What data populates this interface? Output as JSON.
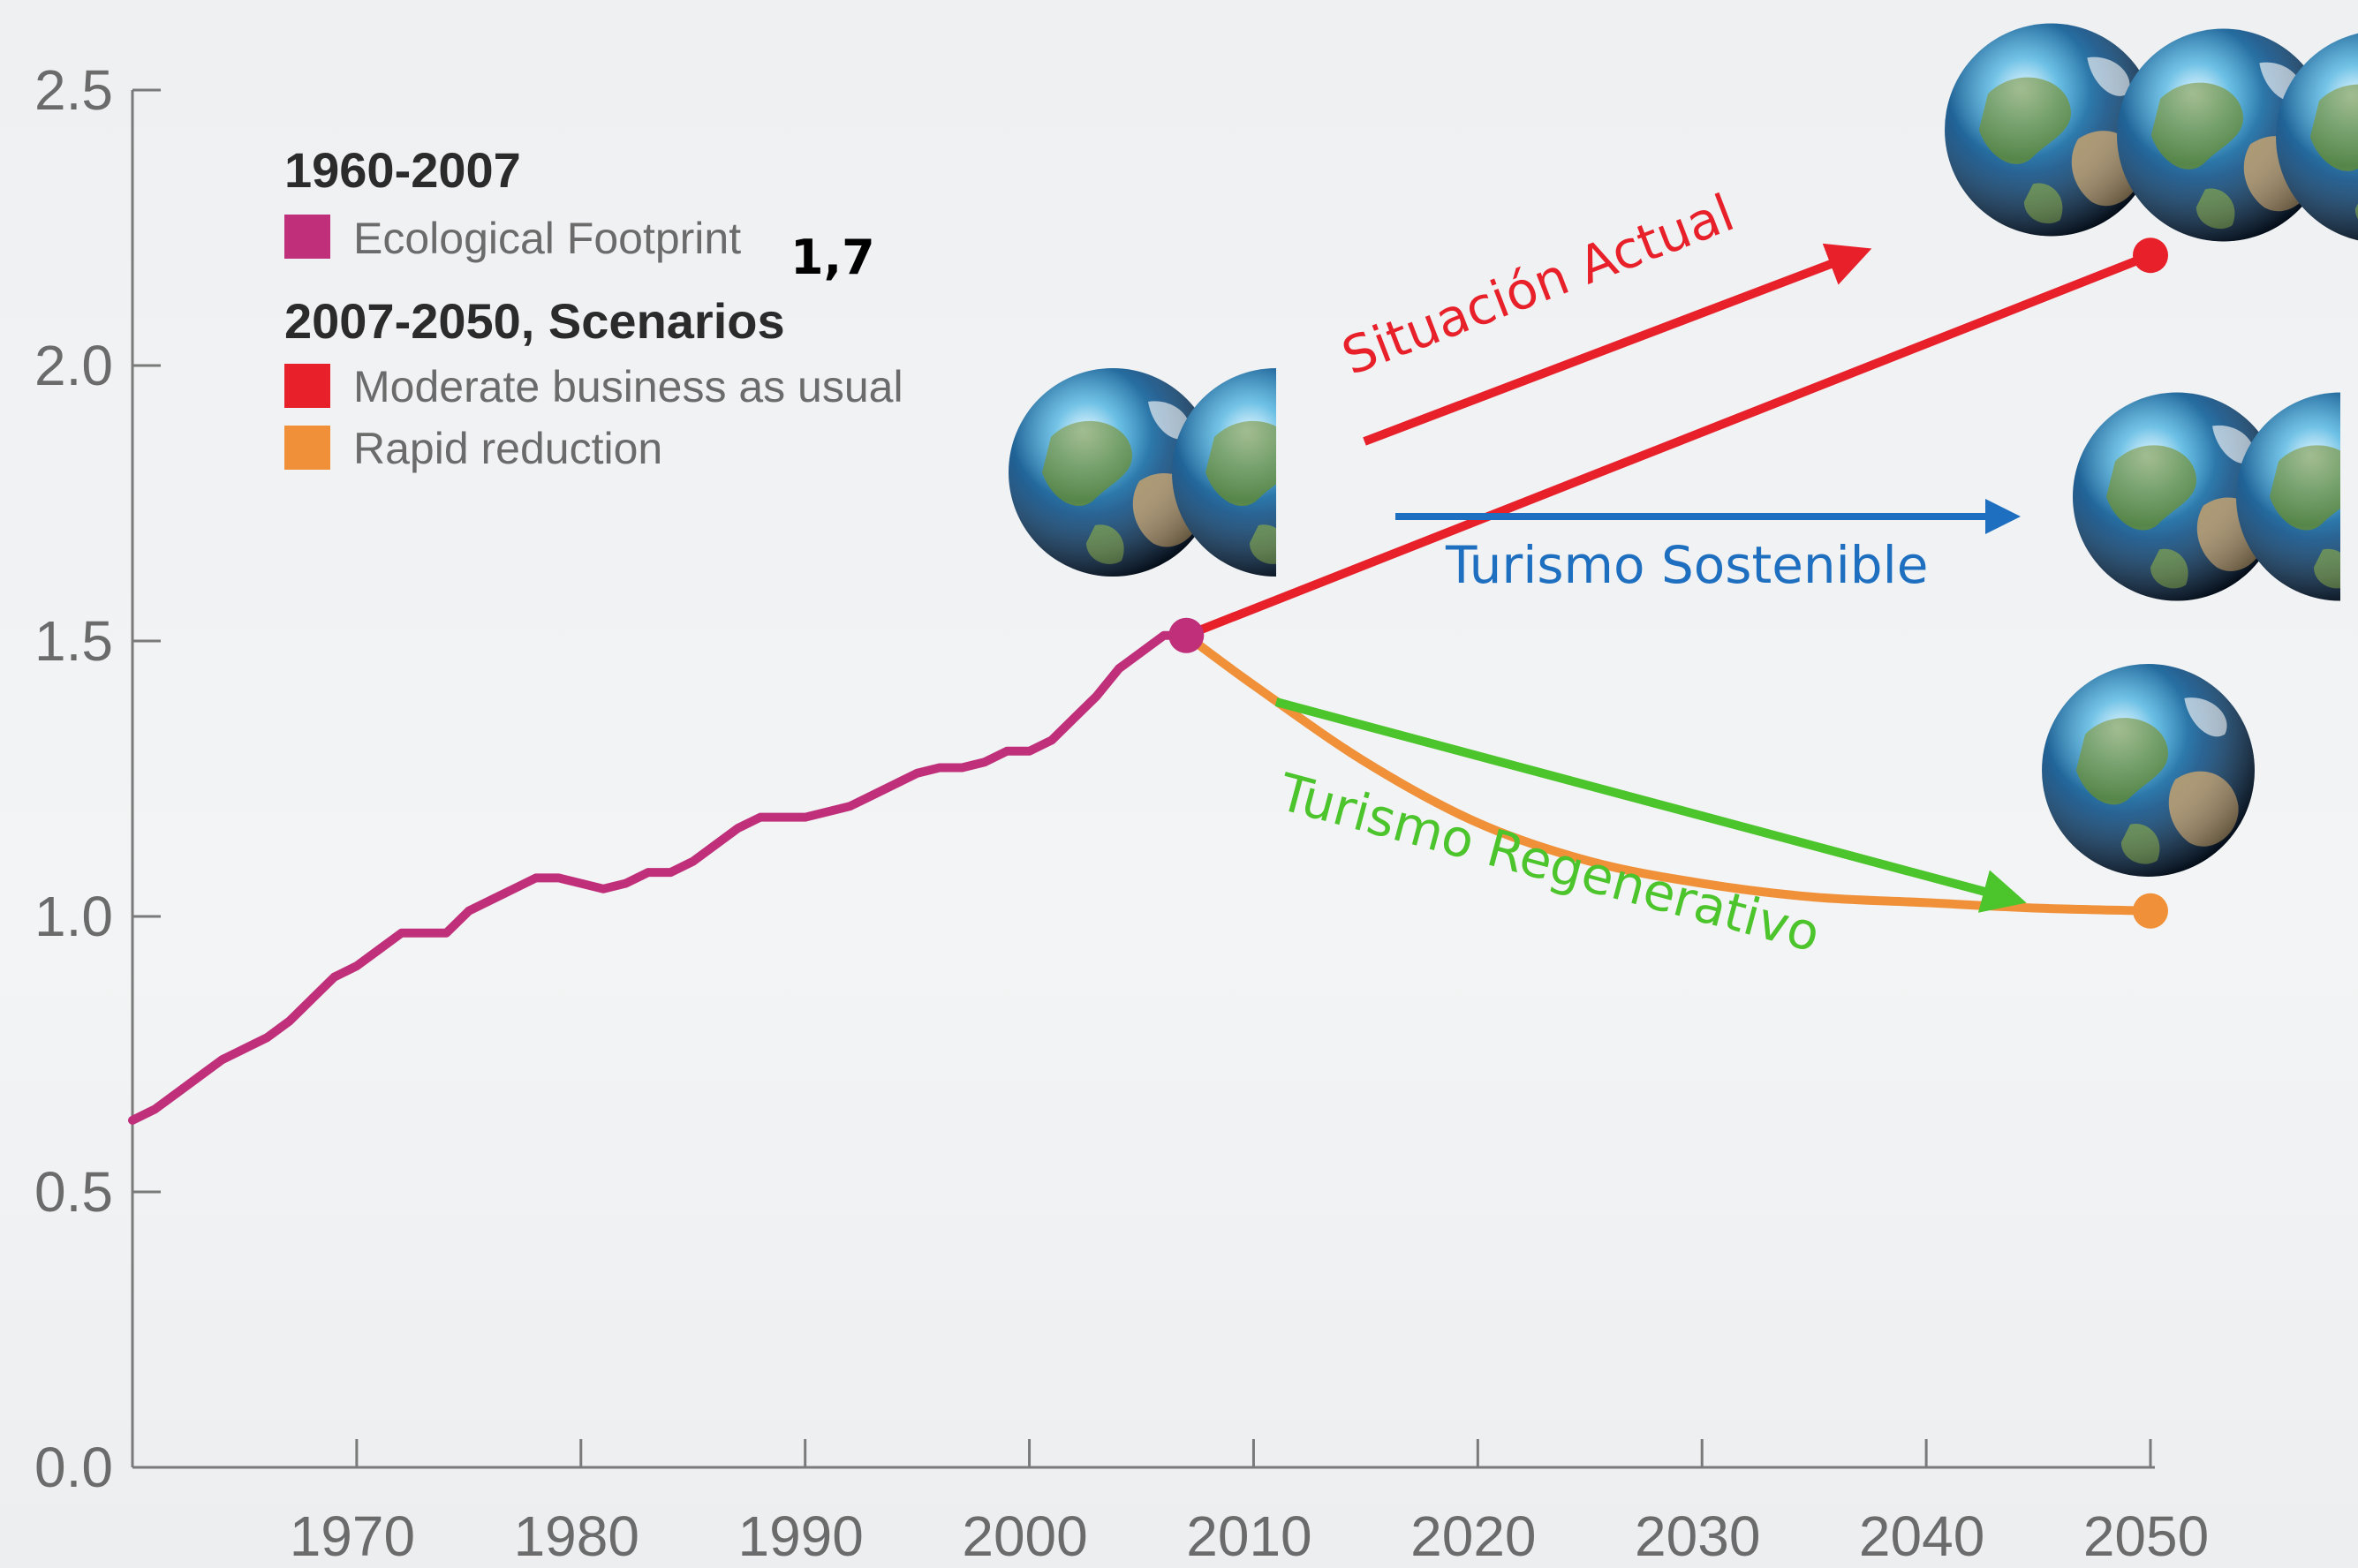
{
  "chart_data": {
    "type": "line",
    "x_ticks": [
      "1970",
      "1980",
      "1990",
      "2000",
      "2010",
      "2020",
      "2030",
      "2040",
      "2050"
    ],
    "y_ticks": [
      "0.0",
      "0.5",
      "1.0",
      "1.5",
      "2.0",
      "2.5"
    ],
    "xlim": [
      1960,
      2050
    ],
    "ylim": [
      0,
      2.5
    ],
    "legend": {
      "group1_title": "1960-2007",
      "group1_items": [
        {
          "name": "Ecological Footprint",
          "color": "#c0307a"
        }
      ],
      "group2_title": "2007-2050, Scenarios",
      "group2_items": [
        {
          "name": "Moderate business as usual",
          "color": "#e8202a"
        },
        {
          "name": "Rapid reduction",
          "color": "#f0913a"
        }
      ],
      "placement": "top-left"
    },
    "series": [
      {
        "name": "Ecological Footprint",
        "color": "#c0307a",
        "x": [
          1960,
          1961,
          1962,
          1963,
          1964,
          1965,
          1966,
          1967,
          1968,
          1969,
          1970,
          1971,
          1972,
          1973,
          1974,
          1975,
          1976,
          1977,
          1978,
          1979,
          1980,
          1981,
          1982,
          1983,
          1984,
          1985,
          1986,
          1987,
          1988,
          1989,
          1990,
          1991,
          1992,
          1993,
          1994,
          1995,
          1996,
          1997,
          1998,
          1999,
          2000,
          2001,
          2002,
          2003,
          2004,
          2005,
          2006,
          2007
        ],
        "y": [
          0.63,
          0.65,
          0.68,
          0.71,
          0.74,
          0.76,
          0.78,
          0.81,
          0.85,
          0.89,
          0.91,
          0.94,
          0.97,
          0.97,
          0.97,
          1.01,
          1.03,
          1.05,
          1.07,
          1.07,
          1.06,
          1.05,
          1.06,
          1.08,
          1.08,
          1.1,
          1.13,
          1.16,
          1.18,
          1.18,
          1.18,
          1.19,
          1.2,
          1.22,
          1.24,
          1.26,
          1.27,
          1.27,
          1.28,
          1.3,
          1.3,
          1.32,
          1.36,
          1.4,
          1.45,
          1.48,
          1.51,
          1.51
        ]
      },
      {
        "name": "Moderate business as usual",
        "color": "#e8202a",
        "x": [
          2007,
          2050
        ],
        "y": [
          1.51,
          2.2
        ]
      },
      {
        "name": "Rapid reduction",
        "color": "#f0913a",
        "x": [
          2007,
          2010,
          2015,
          2020,
          2025,
          2030,
          2035,
          2040,
          2045,
          2050
        ],
        "y": [
          1.51,
          1.42,
          1.28,
          1.17,
          1.1,
          1.06,
          1.035,
          1.025,
          1.015,
          1.01
        ]
      }
    ],
    "annotations": [
      {
        "text": "1,7",
        "color": "#000000"
      },
      {
        "text": "Situación Actual",
        "color": "#e8202a"
      },
      {
        "text": "Turismo Sostenible",
        "color": "#1e6fc0"
      },
      {
        "text": "Turismo Regenerativo",
        "color": "#4cc42c"
      }
    ],
    "grid": false
  }
}
